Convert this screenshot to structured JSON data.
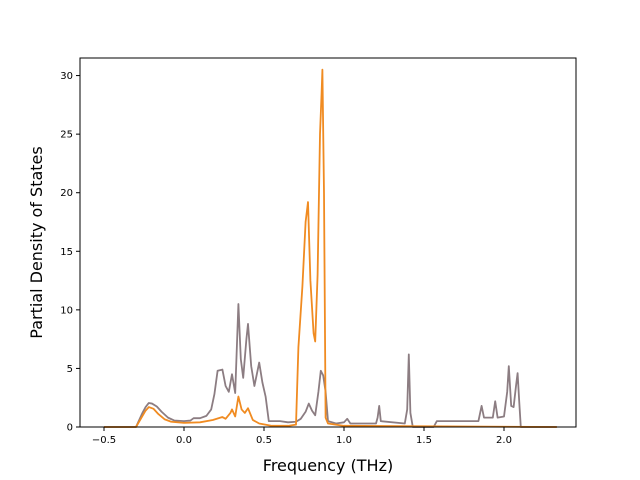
{
  "chart_data": {
    "type": "line",
    "title": "",
    "xlabel": "Frequency (THz)",
    "ylabel": "Partial Density of States",
    "xlim": [
      -0.65,
      2.45
    ],
    "ylim": [
      0,
      31.5
    ],
    "xticks": [
      -0.5,
      0.0,
      0.5,
      1.0,
      1.5,
      2.0
    ],
    "xtick_labels": [
      "−0.5",
      "0.0",
      "0.5",
      "1.0",
      "1.5",
      "2.0"
    ],
    "yticks": [
      0,
      5,
      10,
      15,
      20,
      25,
      30
    ],
    "ytick_labels": [
      "0",
      "5",
      "10",
      "15",
      "20",
      "25",
      "30"
    ],
    "grid": false,
    "legend": "none",
    "series": [
      {
        "color": "#8c7d82",
        "points": [
          [
            -0.5,
            0.0
          ],
          [
            -0.3,
            0.0
          ],
          [
            -0.28,
            0.6
          ],
          [
            -0.26,
            1.2
          ],
          [
            -0.24,
            1.7
          ],
          [
            -0.22,
            2.05
          ],
          [
            -0.2,
            2.0
          ],
          [
            -0.17,
            1.75
          ],
          [
            -0.14,
            1.3
          ],
          [
            -0.1,
            0.8
          ],
          [
            -0.06,
            0.55
          ],
          [
            0.0,
            0.5
          ],
          [
            0.04,
            0.55
          ],
          [
            0.06,
            0.75
          ],
          [
            0.1,
            0.75
          ],
          [
            0.14,
            0.95
          ],
          [
            0.17,
            1.5
          ],
          [
            0.19,
            2.8
          ],
          [
            0.21,
            4.8
          ],
          [
            0.24,
            4.9
          ],
          [
            0.26,
            3.5
          ],
          [
            0.28,
            3.0
          ],
          [
            0.3,
            4.5
          ],
          [
            0.32,
            2.9
          ],
          [
            0.34,
            10.5
          ],
          [
            0.355,
            5.8
          ],
          [
            0.37,
            4.2
          ],
          [
            0.39,
            7.5
          ],
          [
            0.4,
            8.8
          ],
          [
            0.42,
            5.2
          ],
          [
            0.44,
            3.5
          ],
          [
            0.455,
            4.5
          ],
          [
            0.47,
            5.5
          ],
          [
            0.49,
            3.8
          ],
          [
            0.51,
            2.6
          ],
          [
            0.53,
            0.5
          ],
          [
            0.6,
            0.5
          ],
          [
            0.65,
            0.4
          ],
          [
            0.7,
            0.45
          ],
          [
            0.73,
            0.7
          ],
          [
            0.76,
            1.3
          ],
          [
            0.78,
            2.0
          ],
          [
            0.8,
            1.4
          ],
          [
            0.82,
            1.0
          ],
          [
            0.84,
            3.0
          ],
          [
            0.855,
            4.8
          ],
          [
            0.87,
            4.4
          ],
          [
            0.885,
            3.0
          ],
          [
            0.9,
            0.5
          ],
          [
            0.95,
            0.3
          ],
          [
            1.0,
            0.4
          ],
          [
            1.02,
            0.7
          ],
          [
            1.04,
            0.3
          ],
          [
            1.2,
            0.3
          ],
          [
            1.21,
            0.8
          ],
          [
            1.22,
            1.8
          ],
          [
            1.23,
            0.5
          ],
          [
            1.38,
            0.3
          ],
          [
            1.395,
            1.5
          ],
          [
            1.405,
            6.2
          ],
          [
            1.415,
            1.2
          ],
          [
            1.43,
            0.0
          ],
          [
            1.56,
            0.0
          ],
          [
            1.58,
            0.5
          ],
          [
            1.84,
            0.5
          ],
          [
            1.86,
            1.8
          ],
          [
            1.875,
            0.8
          ],
          [
            1.93,
            0.8
          ],
          [
            1.945,
            2.2
          ],
          [
            1.96,
            0.8
          ],
          [
            2.0,
            0.9
          ],
          [
            2.02,
            3.0
          ],
          [
            2.03,
            5.2
          ],
          [
            2.045,
            1.8
          ],
          [
            2.06,
            1.7
          ],
          [
            2.075,
            3.5
          ],
          [
            2.085,
            4.6
          ],
          [
            2.095,
            2.2
          ],
          [
            2.105,
            0.0
          ],
          [
            2.33,
            0.0
          ]
        ]
      },
      {
        "color": "#f08b21",
        "points": [
          [
            -0.5,
            0.0
          ],
          [
            -0.3,
            0.0
          ],
          [
            -0.27,
            0.7
          ],
          [
            -0.24,
            1.4
          ],
          [
            -0.22,
            1.7
          ],
          [
            -0.19,
            1.55
          ],
          [
            -0.16,
            1.1
          ],
          [
            -0.12,
            0.65
          ],
          [
            -0.08,
            0.45
          ],
          [
            0.0,
            0.35
          ],
          [
            0.1,
            0.4
          ],
          [
            0.18,
            0.6
          ],
          [
            0.24,
            0.85
          ],
          [
            0.26,
            0.7
          ],
          [
            0.29,
            1.2
          ],
          [
            0.3,
            1.5
          ],
          [
            0.32,
            0.9
          ],
          [
            0.34,
            2.6
          ],
          [
            0.36,
            1.5
          ],
          [
            0.38,
            1.2
          ],
          [
            0.4,
            1.6
          ],
          [
            0.43,
            0.6
          ],
          [
            0.47,
            0.3
          ],
          [
            0.55,
            0.1
          ],
          [
            0.65,
            0.1
          ],
          [
            0.7,
            0.2
          ],
          [
            0.715,
            6.8
          ],
          [
            0.74,
            12.0
          ],
          [
            0.76,
            17.5
          ],
          [
            0.775,
            19.2
          ],
          [
            0.79,
            12.5
          ],
          [
            0.81,
            8.0
          ],
          [
            0.82,
            7.3
          ],
          [
            0.835,
            13.0
          ],
          [
            0.85,
            25.0
          ],
          [
            0.86,
            28.5
          ],
          [
            0.865,
            30.5
          ],
          [
            0.875,
            20.0
          ],
          [
            0.885,
            0.8
          ],
          [
            0.9,
            0.3
          ],
          [
            1.0,
            0.1
          ],
          [
            2.33,
            0.0
          ]
        ]
      }
    ]
  }
}
